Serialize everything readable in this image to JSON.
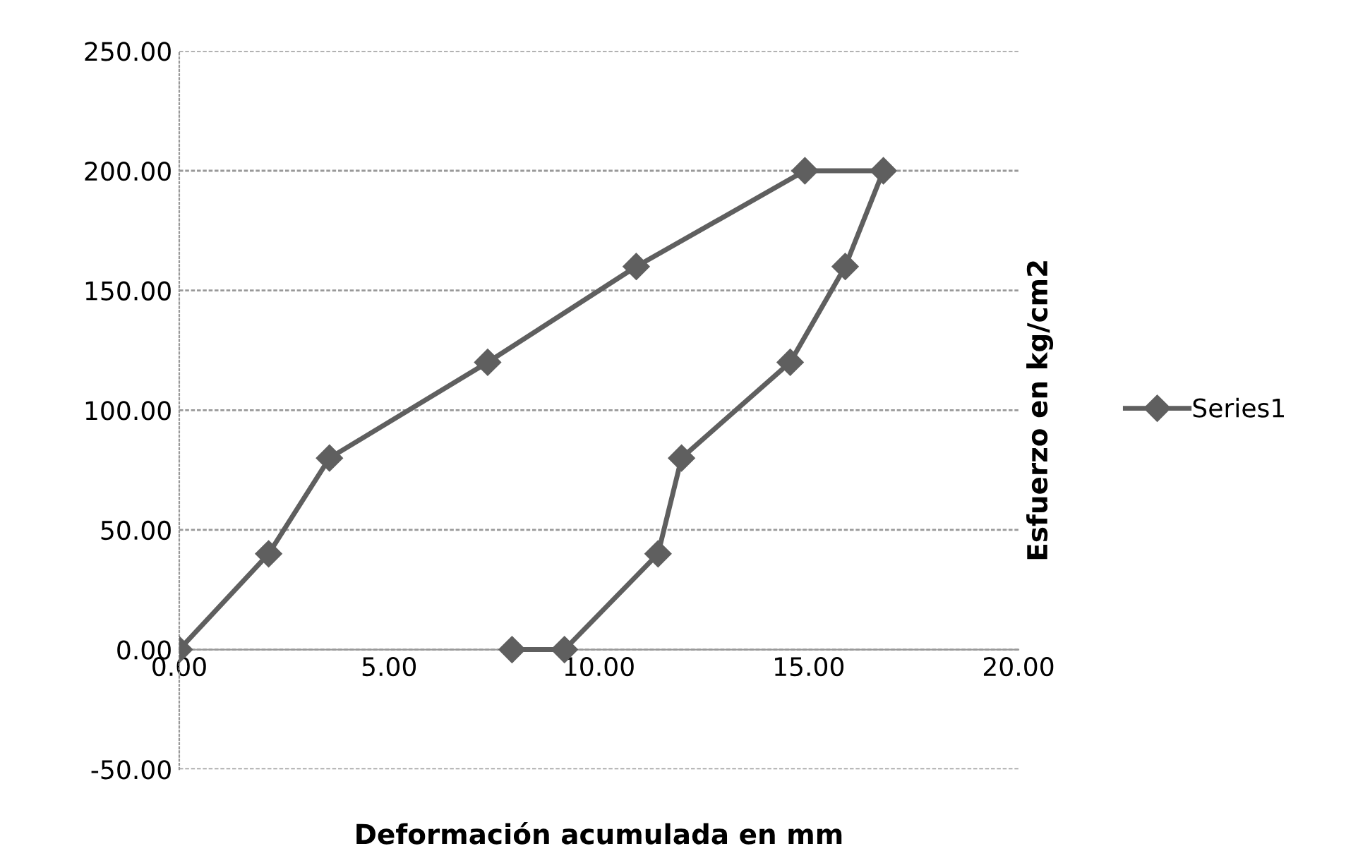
{
  "chart_data": {
    "type": "line",
    "xlabel": "Deformación acumulada en mm",
    "ylabel": "Esfuerzo en kg/cm2",
    "x": [
      0,
      2.13,
      3.58,
      7.35,
      10.89,
      14.91,
      16.78,
      15.87,
      14.56,
      11.97,
      11.41,
      9.18,
      7.93
    ],
    "series": [
      {
        "name": "Series1",
        "color": "#5f5f5f",
        "values": [
          0,
          40,
          80,
          120,
          160,
          200,
          200,
          160,
          120,
          80,
          40,
          0,
          0
        ]
      }
    ],
    "xlim": [
      0,
      20
    ],
    "ylim": [
      -50,
      250
    ],
    "xticks": [
      {
        "value": 0,
        "label": "0.00"
      },
      {
        "value": 5,
        "label": "5.00"
      },
      {
        "value": 10,
        "label": "10.00"
      },
      {
        "value": 15,
        "label": "15.00"
      },
      {
        "value": 20,
        "label": "20.00"
      }
    ],
    "yticks": [
      {
        "value": -50,
        "label": "-50.00"
      },
      {
        "value": 0,
        "label": "0.00"
      },
      {
        "value": 50,
        "label": "50.00"
      },
      {
        "value": 100,
        "label": "100.00"
      },
      {
        "value": 150,
        "label": "150.00"
      },
      {
        "value": 200,
        "label": "200.00"
      },
      {
        "value": 250,
        "label": "250.00"
      }
    ],
    "grid": "y",
    "legend": "right",
    "marker": "diamond",
    "line_style": "solid"
  }
}
